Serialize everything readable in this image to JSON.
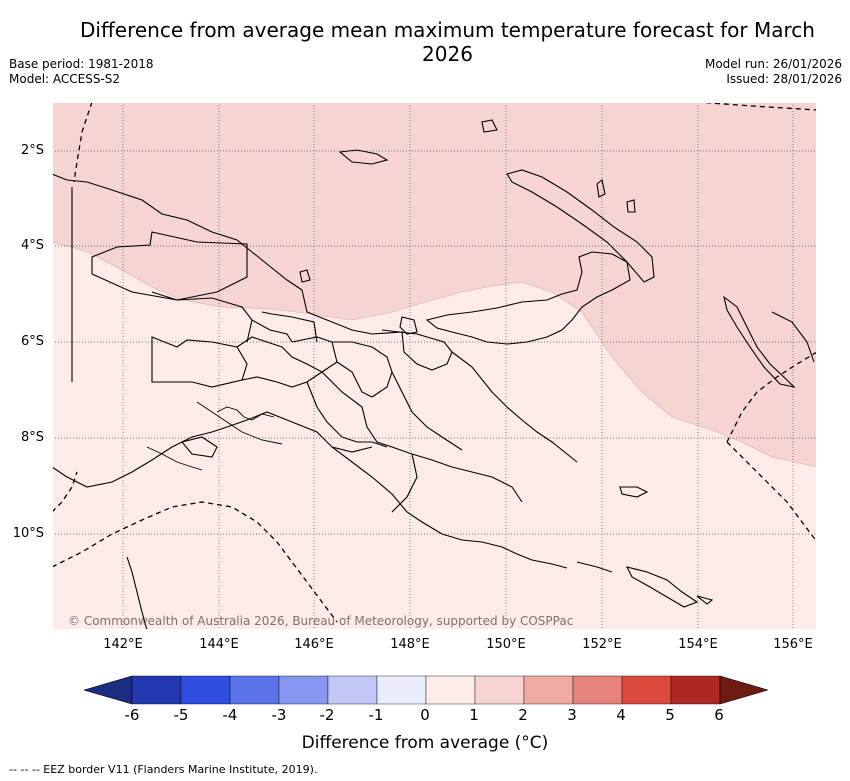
{
  "title": "Difference from average mean maximum temperature forecast for March 2026",
  "meta_left": {
    "base_period": "Base period: 1981-2018",
    "model": "Model: ACCESS-S2"
  },
  "meta_right": {
    "model_run": "Model run: 26/01/2026",
    "issued": "Issued: 28/01/2026"
  },
  "map": {
    "region": "Papua New Guinea",
    "lat_labels": [
      "2°S",
      "4°S",
      "6°S",
      "8°S",
      "10°S"
    ],
    "lon_labels": [
      "142°E",
      "144°E",
      "146°E",
      "148°E",
      "150°E",
      "152°E",
      "154°E",
      "156°E"
    ],
    "lat_range": [
      -12,
      -1
    ],
    "lon_range": [
      140.5,
      156.5
    ],
    "categories": {
      "north": {
        "range": "1 to 2",
        "color": "#f5d4d1"
      },
      "south": {
        "range": "0 to 1",
        "color": "#fcebe8"
      }
    },
    "copyright": "© Commonwealth of Australia 2026, Bureau of Meteorology, supported by COSPPac"
  },
  "colorbar": {
    "ticks": [
      "-6",
      "-5",
      "-4",
      "-3",
      "-2",
      "-1",
      "0",
      "1",
      "2",
      "3",
      "4",
      "5",
      "6"
    ],
    "colors": [
      "#1c2c80",
      "#2338b0",
      "#2f4fe0",
      "#5a73e8",
      "#8696ee",
      "#c2c8f6",
      "#eaedfb",
      "#fcebe8",
      "#f5d4d1",
      "#efaaa4",
      "#e6837b",
      "#dc4a3e",
      "#ad2820",
      "#6e1a15"
    ],
    "label": "Difference from average (°C)"
  },
  "eez_note": "-- -- -- EEZ border V11 (Flanders Marine Institute, 2019)."
}
